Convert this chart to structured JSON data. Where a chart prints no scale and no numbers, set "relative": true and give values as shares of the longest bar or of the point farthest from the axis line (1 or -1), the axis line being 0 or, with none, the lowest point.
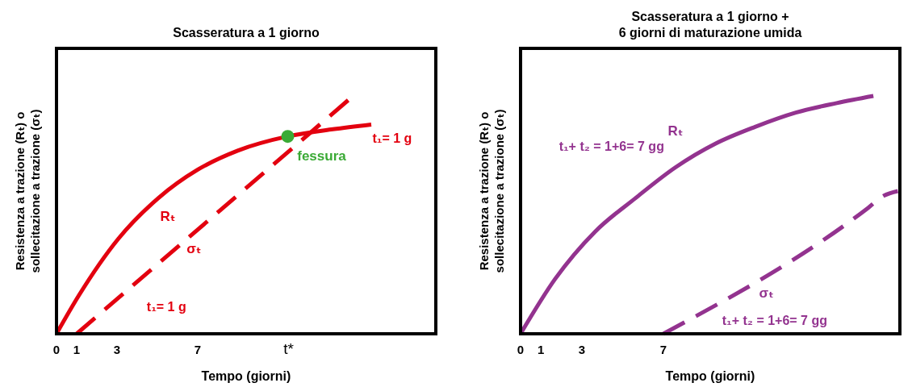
{
  "chart_data": [
    {
      "type": "line",
      "title": "Scasseratura a 1 giorno",
      "xlabel": "Tempo (giorni)",
      "ylabel": "Resistenza a trazione (Rₜ) o\nsollecitazione a trazione (σₜ)",
      "relative": true,
      "xlim": [
        0,
        18.8
      ],
      "xticks": [
        0,
        1,
        3,
        7,
        {
          "value": 11.5,
          "label": "t*"
        }
      ],
      "legend": false,
      "grid": false,
      "series": [
        {
          "name": "Rₜ",
          "color": "#e3000f",
          "line_style": "solid",
          "x": [
            0,
            1.1,
            3.07,
            5.04,
            7.0,
            8.98,
            11.46,
            13.7,
            15.6
          ],
          "values": [
            0,
            0.16,
            0.4,
            0.57,
            0.69,
            0.77,
            0.83,
            0.86,
            0.88
          ]
        },
        {
          "name": "σₜ",
          "color": "#e3000f",
          "line_style": "dashed",
          "x": [
            1,
            14.7
          ],
          "values": [
            0,
            1
          ]
        },
        {
          "name": "fessura",
          "type": "scatter",
          "marker": "circle",
          "color": "#3aaa35",
          "x": [
            11.46
          ],
          "values": [
            0.83
          ]
        }
      ],
      "annotations": [
        "t₁= 1 g",
        "t₁= 1 g"
      ]
    },
    {
      "type": "line",
      "title": "Scasseratura a 1 giorno +\n6 giorni di maturazione umida",
      "xlabel": "Tempo (giorni)",
      "ylabel": "Resistenza a trazione (Rₜ) o\nsollecitazione a trazione (σₜ)",
      "relative": true,
      "xlim": [
        0,
        18.6
      ],
      "xticks": [
        0,
        1,
        3,
        7
      ],
      "legend": false,
      "grid": false,
      "series": [
        {
          "name": "Rₜ",
          "color": "#93338f",
          "line_style": "solid",
          "x": [
            0,
            1.69,
            3.66,
            5.63,
            7.6,
            9.57,
            11.5,
            13.5,
            15.5,
            17.3
          ],
          "values": [
            0,
            0.23,
            0.43,
            0.57,
            0.7,
            0.8,
            0.87,
            0.93,
            0.97,
            1
          ]
        },
        {
          "name": "σₜ",
          "color": "#93338f",
          "line_style": "dashed",
          "x": [
            7,
            17.05,
            17.8,
            18.5
          ],
          "values": [
            0,
            0.53,
            0.58,
            0.6
          ]
        }
      ],
      "annotations": [
        "t₁+ t₂ = 1+6= 7 gg",
        "t₁+ t₂ = 1+6= 7 gg"
      ]
    }
  ]
}
